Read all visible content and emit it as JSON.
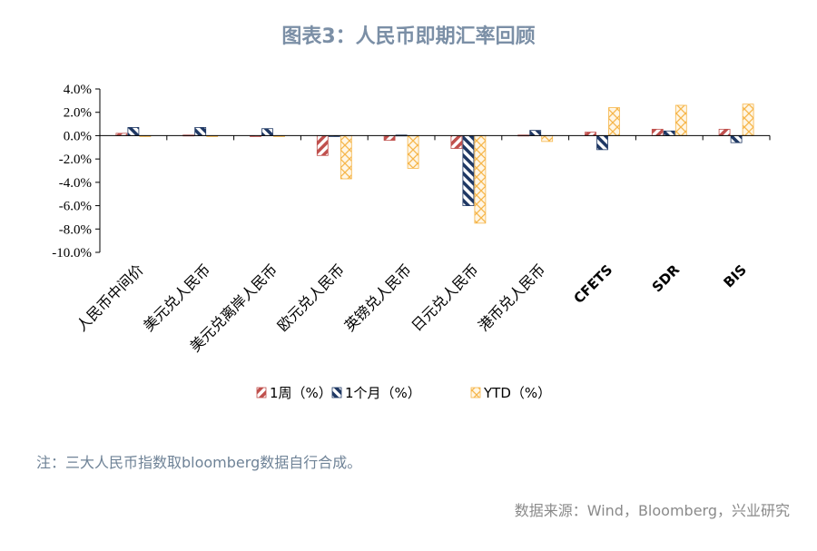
{
  "title": "图表3：人民币即期汇率回顾",
  "note": "注：三大人民币指数取bloomberg数据自行合成。",
  "source": "数据来源：Wind，Bloomberg，兴业研究",
  "colors": {
    "week": "#c0504d",
    "month": "#1f3864",
    "ytd": "#f6b64a",
    "axis": "#000000"
  },
  "chart_data": {
    "type": "bar",
    "categories": [
      "人民币中间价",
      "美元兑人民币",
      "美元兑离岸人民币",
      "欧元兑人民币",
      "英镑兑人民币",
      "日元兑人民币",
      "港币兑人民币",
      "CFETS",
      "SDR",
      "BIS"
    ],
    "series": [
      {
        "name": "1周（%）",
        "values": [
          0.2,
          0.05,
          -0.05,
          -1.7,
          -0.4,
          -1.1,
          0.05,
          0.3,
          0.55,
          0.55
        ]
      },
      {
        "name": "1个月（%）",
        "values": [
          0.7,
          0.7,
          0.6,
          0.0,
          0.05,
          -6.0,
          0.45,
          -1.2,
          0.4,
          -0.6
        ]
      },
      {
        "name": "YTD（%）",
        "values": [
          -0.05,
          -0.05,
          -0.05,
          -3.7,
          -2.8,
          -7.5,
          -0.5,
          2.4,
          2.6,
          2.7
        ]
      }
    ],
    "ylim": [
      -10,
      4
    ],
    "yticks": [
      "4.0%",
      "2.0%",
      "0.0%",
      "-2.0%",
      "-4.0%",
      "-6.0%",
      "-8.0%",
      "-10.0%"
    ],
    "ytick_values": [
      4,
      2,
      0,
      -2,
      -4,
      -6,
      -8,
      -10
    ],
    "legend_position": "bottom",
    "grid": false
  }
}
